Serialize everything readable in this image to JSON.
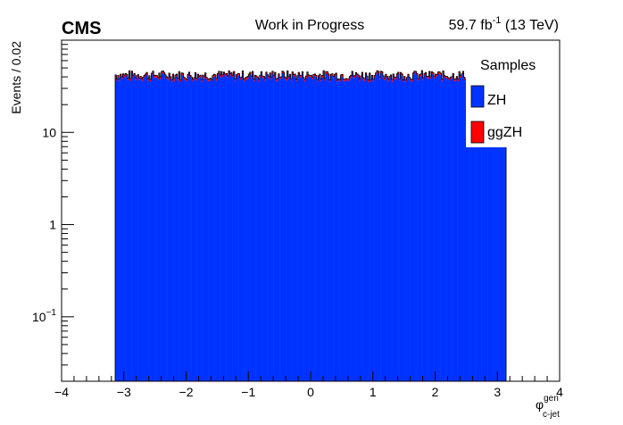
{
  "header": {
    "experiment": "CMS",
    "status": "Work in Progress",
    "lumi_value": "59.7 fb",
    "lumi_exp": "-1",
    "lumi_energy": " (13 TeV)"
  },
  "chart_data": {
    "type": "bar",
    "stacked": true,
    "log_y": true,
    "ylabel": "Events / 0.02",
    "xlabel_main": "φ",
    "xlabel_sup": "gen",
    "xlabel_sub": "c-jet",
    "xlim": [
      -4,
      4
    ],
    "ylim": [
      0.02,
      100
    ],
    "xticks": [
      -4,
      -3,
      -2,
      -1,
      0,
      1,
      2,
      3,
      4
    ],
    "yticks": [
      {
        "value": 0.1,
        "base": "10",
        "exp": "−1"
      },
      {
        "value": 1,
        "base": "1",
        "exp": ""
      },
      {
        "value": 10,
        "base": "10",
        "exp": ""
      }
    ],
    "bin_width": 0.02,
    "x_range": [
      -3.14,
      3.14
    ],
    "series": [
      {
        "name": "ZH",
        "color": "#0033ff",
        "level": 40
      },
      {
        "name": "ggZH",
        "color": "#ff0000",
        "level": 2
      }
    ],
    "legend": {
      "title": "Samples",
      "position": "top-right"
    }
  }
}
